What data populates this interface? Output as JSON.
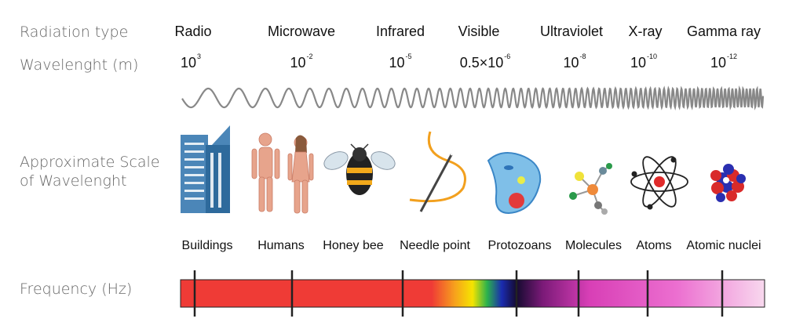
{
  "labels": {
    "radiation_type": "Radiation type",
    "wavelength": "Wavelenght (m)",
    "scale_line1": "Approximate Scale",
    "scale_line2": "of Wavelenght",
    "frequency": "Frequency (Hz)"
  },
  "radiation_types": [
    "Radio",
    "Microwave",
    "Infrared",
    "Visible",
    "Ultraviolet",
    "X-ray",
    "Gamma ray"
  ],
  "wavelengths": [
    {
      "base": "10",
      "exp": "3"
    },
    {
      "base": "10",
      "exp": "-2"
    },
    {
      "base": "10",
      "exp": "-5"
    },
    {
      "base": "0.5×10",
      "exp": "-6"
    },
    {
      "base": "10",
      "exp": "-8"
    },
    {
      "base": "10",
      "exp": "-10"
    },
    {
      "base": "10",
      "exp": "-12"
    }
  ],
  "objects": [
    "Buildings",
    "Humans",
    "Honey bee",
    "Needle point",
    "Protozoans",
    "Molecules",
    "Atoms",
    "Atomic nuclei"
  ],
  "icons": [
    "buildings-icon",
    "humans-icon",
    "honey-bee-icon",
    "needle-icon",
    "protozoan-icon",
    "molecule-icon",
    "atom-icon",
    "nucleus-icon"
  ],
  "colors": {
    "radio": "#ef3b36",
    "visible_yellow": "#f5e400",
    "visible_green": "#2bb24c",
    "visible_blue": "#1a2bb0",
    "ultraviolet": "#e94fc5",
    "gamma": "#f8d8ee"
  }
}
